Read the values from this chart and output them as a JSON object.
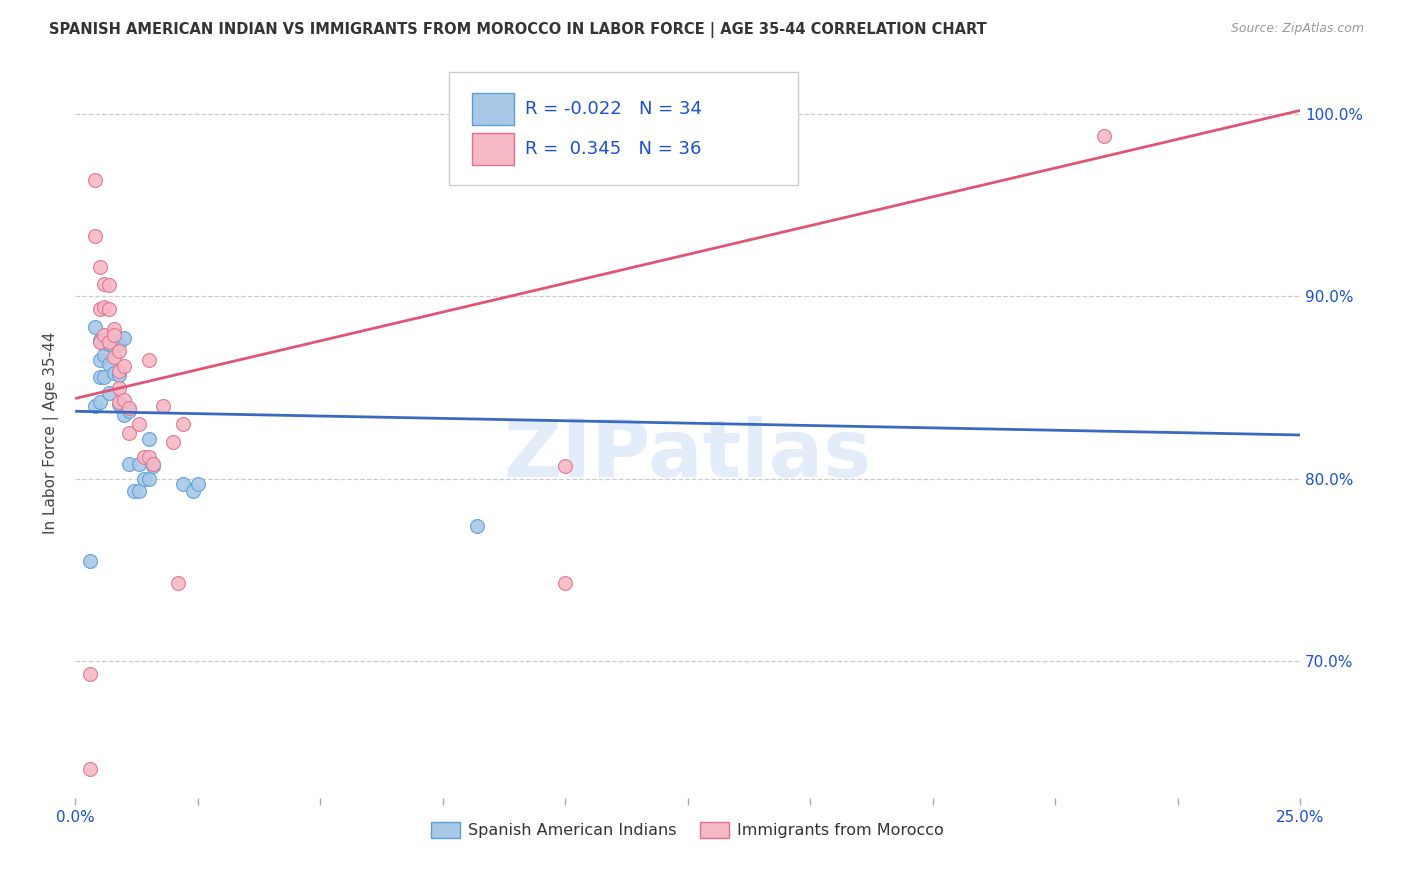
{
  "title": "SPANISH AMERICAN INDIAN VS IMMIGRANTS FROM MOROCCO IN LABOR FORCE | AGE 35-44 CORRELATION CHART",
  "source": "Source: ZipAtlas.com",
  "ylabel": "In Labor Force | Age 35-44",
  "xmin": 0.0,
  "xmax": 0.25,
  "ymin": 0.625,
  "ymax": 1.025,
  "right_yticks": [
    1.0,
    0.9,
    0.8,
    0.7
  ],
  "right_yticklabels": [
    "100.0%",
    "90.0%",
    "80.0%",
    "70.0%"
  ],
  "grid_color": "#cccccc",
  "background_color": "#ffffff",
  "blue_color": "#a8c8e8",
  "blue_edge": "#5a9fd4",
  "pink_color": "#f5b8c4",
  "pink_edge": "#e07090",
  "blue_R": "-0.022",
  "blue_N": "34",
  "pink_R": "0.345",
  "pink_N": "36",
  "legend_text_color": "#1a50d0",
  "watermark": "ZIPatlas",
  "blue_points_x": [
    0.003,
    0.004,
    0.004,
    0.005,
    0.005,
    0.005,
    0.005,
    0.006,
    0.006,
    0.006,
    0.007,
    0.007,
    0.007,
    0.007,
    0.008,
    0.008,
    0.009,
    0.009,
    0.009,
    0.01,
    0.01,
    0.011,
    0.011,
    0.012,
    0.013,
    0.013,
    0.014,
    0.015,
    0.015,
    0.016,
    0.022,
    0.024,
    0.025,
    0.082
  ],
  "blue_points_y": [
    0.755,
    0.883,
    0.84,
    0.876,
    0.865,
    0.856,
    0.842,
    0.874,
    0.868,
    0.856,
    0.878,
    0.874,
    0.863,
    0.847,
    0.872,
    0.858,
    0.874,
    0.857,
    0.841,
    0.877,
    0.835,
    0.837,
    0.808,
    0.793,
    0.808,
    0.793,
    0.8,
    0.822,
    0.8,
    0.807,
    0.797,
    0.793,
    0.797,
    0.774
  ],
  "pink_points_x": [
    0.003,
    0.003,
    0.004,
    0.004,
    0.005,
    0.005,
    0.005,
    0.006,
    0.006,
    0.006,
    0.007,
    0.007,
    0.007,
    0.008,
    0.008,
    0.008,
    0.009,
    0.009,
    0.009,
    0.009,
    0.01,
    0.01,
    0.011,
    0.011,
    0.013,
    0.014,
    0.015,
    0.015,
    0.016,
    0.018,
    0.02,
    0.021,
    0.022,
    0.1,
    0.1,
    0.21
  ],
  "pink_points_y": [
    0.641,
    0.693,
    0.964,
    0.933,
    0.916,
    0.893,
    0.875,
    0.907,
    0.894,
    0.879,
    0.906,
    0.893,
    0.875,
    0.882,
    0.879,
    0.867,
    0.87,
    0.859,
    0.85,
    0.842,
    0.862,
    0.843,
    0.839,
    0.825,
    0.83,
    0.812,
    0.865,
    0.812,
    0.808,
    0.84,
    0.82,
    0.743,
    0.83,
    0.807,
    0.743,
    0.988
  ],
  "blue_trend_start_y": 0.837,
  "blue_trend_end_y": 0.824,
  "pink_trend_start_y": 0.844,
  "pink_trend_end_y": 1.002,
  "legend_label_blue": "Spanish American Indians",
  "legend_label_pink": "Immigrants from Morocco",
  "marker_size": 100,
  "xtick_positions": [
    0.0,
    0.05,
    0.1,
    0.15,
    0.2,
    0.25
  ],
  "xtick_minor_count": 8
}
